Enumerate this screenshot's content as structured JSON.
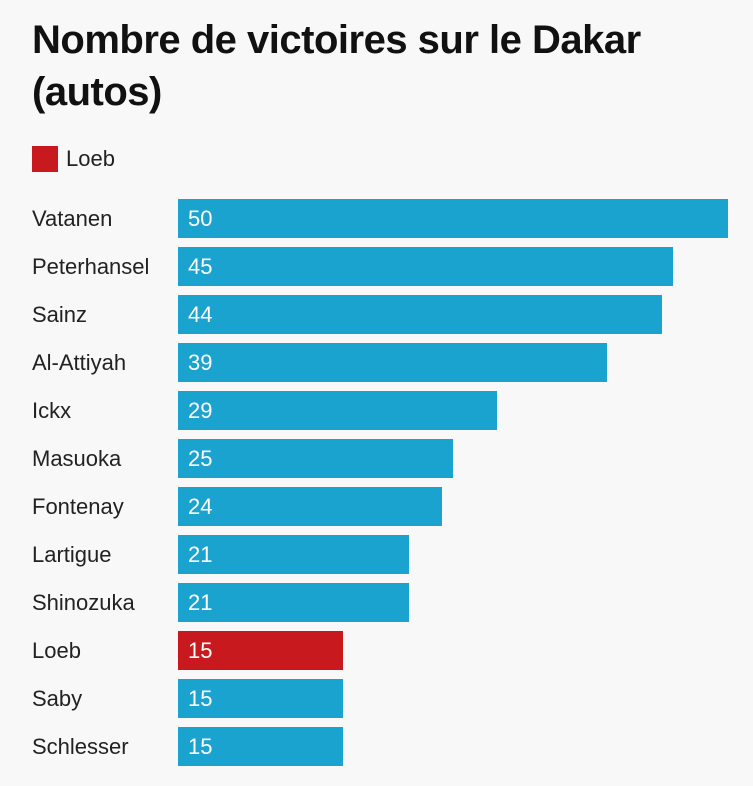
{
  "chart_data": {
    "type": "bar",
    "orientation": "horizontal",
    "title": "Nombre de victoires sur le Dakar (autos)",
    "legend": {
      "placement": "top-left",
      "entries": [
        {
          "label": "Loeb",
          "color": "#c8191f"
        }
      ]
    },
    "categories": [
      "Vatanen",
      "Peterhansel",
      "Sainz",
      "Al-Attiyah",
      "Ickx",
      "Masuoka",
      "Fontenay",
      "Lartigue",
      "Shinozuka",
      "Loeb",
      "Saby",
      "Schlesser"
    ],
    "values": [
      50,
      45,
      44,
      39,
      29,
      25,
      24,
      21,
      21,
      15,
      15,
      15
    ],
    "highlight": "Loeb",
    "colors": {
      "default": "#1ba3d0",
      "highlight": "#c8191f"
    },
    "xlim": [
      0,
      50
    ],
    "grid": false,
    "value_labels": "inside-left"
  }
}
